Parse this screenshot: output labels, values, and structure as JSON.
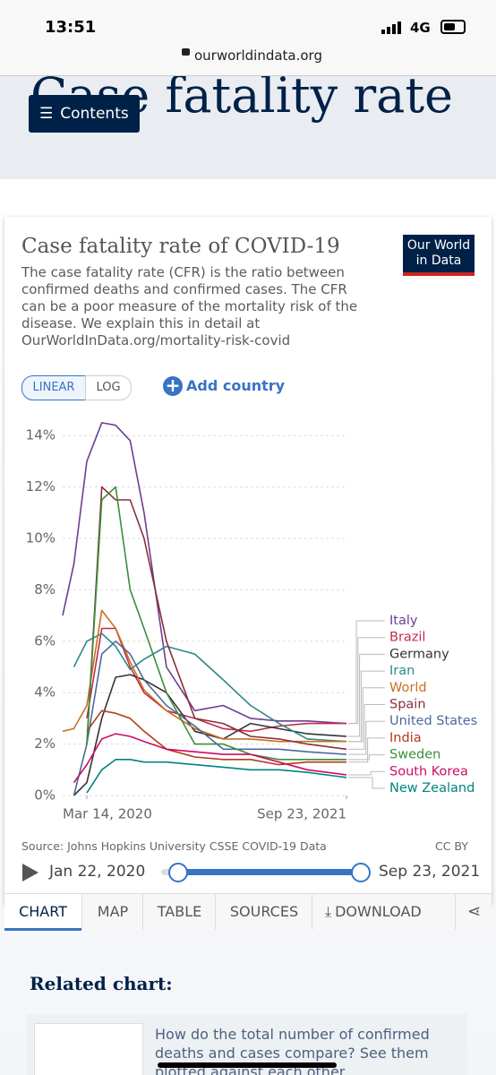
{
  "status_bar": {
    "time": "13:51",
    "network": "4G"
  },
  "browser": {
    "url": "ourworldindata.org"
  },
  "header": {
    "title": "Case fatality rate",
    "contents_button": "Contents"
  },
  "logo": {
    "line1": "Our World",
    "line2": "in Data"
  },
  "chart_data": {
    "type": "line",
    "title": "Case fatality rate of COVID-19",
    "subtitle": "The case fatality rate (CFR) is the ratio between confirmed deaths and confirmed cases. The CFR can be a poor measure of the mortality risk of the disease. We explain this in detail at OurWorldInData.org/mortality-risk-covid",
    "x": [
      "2020-01-22",
      "2020-02-15",
      "2020-03-14",
      "2020-04-15",
      "2020-05-15",
      "2020-06-15",
      "2020-07-15",
      "2020-09-01",
      "2020-11-01",
      "2021-01-01",
      "2021-03-01",
      "2021-05-01",
      "2021-07-01",
      "2021-09-23"
    ],
    "xlim": [
      "2020-01-22",
      "2021-09-23"
    ],
    "xticks": [
      {
        "value": "2020-03-14",
        "label": "Mar 14, 2020"
      },
      {
        "value": "2021-09-23",
        "label": "Sep 23, 2021"
      }
    ],
    "ylim": [
      0,
      14.5
    ],
    "yticks": [
      {
        "value": 0,
        "label": "0%"
      },
      {
        "value": 2,
        "label": "2%"
      },
      {
        "value": 4,
        "label": "4%"
      },
      {
        "value": 6,
        "label": "6%"
      },
      {
        "value": 8,
        "label": "8%"
      },
      {
        "value": 10,
        "label": "10%"
      },
      {
        "value": 12,
        "label": "12%"
      },
      {
        "value": 14,
        "label": "14%"
      }
    ],
    "grid": true,
    "legend": "right",
    "series": [
      {
        "name": "Italy",
        "color": "#6d3e91",
        "values": [
          7,
          9,
          13,
          14.5,
          14.4,
          13.8,
          11,
          5,
          3.3,
          3.5,
          3.0,
          2.9,
          2.9,
          2.8
        ]
      },
      {
        "name": "Brazil",
        "color": "#c32b4b",
        "values": [
          null,
          null,
          3,
          6.5,
          6.5,
          5,
          4,
          3.3,
          3.0,
          2.6,
          2.5,
          2.7,
          2.8,
          2.8
        ]
      },
      {
        "name": "Germany",
        "color": "#333333",
        "values": [
          null,
          0,
          0.5,
          3,
          4.6,
          4.7,
          4.5,
          4.0,
          2.5,
          2.2,
          2.8,
          2.6,
          2.4,
          2.3
        ]
      },
      {
        "name": "Iran",
        "color": "#2a8989",
        "values": [
          null,
          5,
          6,
          6.3,
          5.8,
          4.9,
          5.3,
          5.8,
          5.5,
          4.5,
          3.5,
          2.8,
          2.2,
          2.1
        ]
      },
      {
        "name": "World",
        "color": "#c96f1d",
        "values": [
          2.5,
          2.6,
          3.5,
          7.2,
          6.5,
          5.2,
          4.1,
          3.3,
          2.6,
          2.2,
          2.2,
          2.1,
          2.1,
          2.1
        ]
      },
      {
        "name": "Spain",
        "color": "#883039",
        "values": [
          null,
          null,
          2,
          12,
          11.5,
          11.5,
          10,
          6,
          3,
          2.8,
          2.3,
          2.2,
          2.0,
          1.8
        ]
      },
      {
        "name": "United States",
        "color": "#4c6a9c",
        "values": [
          null,
          0,
          2,
          5.5,
          6,
          5.5,
          4.5,
          3.5,
          2.7,
          1.8,
          1.8,
          1.8,
          1.7,
          1.6
        ]
      },
      {
        "name": "India",
        "color": "#b43a1a",
        "values": [
          null,
          null,
          2.5,
          3.3,
          3.2,
          3.0,
          2.5,
          1.8,
          1.5,
          1.4,
          1.4,
          1.2,
          1.3,
          1.3
        ]
      },
      {
        "name": "Sweden",
        "color": "#3b8e3b",
        "values": [
          null,
          null,
          2,
          11.5,
          12,
          8,
          6.5,
          4,
          2.0,
          2.0,
          1.6,
          1.4,
          1.4,
          1.4
        ]
      },
      {
        "name": "South Korea",
        "color": "#cf0a66",
        "values": [
          null,
          0.5,
          1.2,
          2.2,
          2.4,
          2.3,
          2.1,
          1.8,
          1.7,
          1.6,
          1.6,
          1.3,
          1.0,
          0.8
        ]
      },
      {
        "name": "New Zealand",
        "color": "#00847e",
        "values": [
          null,
          null,
          0.1,
          1.0,
          1.4,
          1.4,
          1.3,
          1.3,
          1.2,
          1.1,
          1.0,
          1.0,
          0.9,
          0.7
        ]
      }
    ]
  },
  "controls": {
    "linear": "LINEAR",
    "log": "LOG",
    "add_country": "Add country"
  },
  "footer": {
    "source": "Source: Johns Hopkins University CSSE COVID-19 Data",
    "license": "CC BY",
    "start": "Jan 22, 2020",
    "end": "Sep 23, 2021"
  },
  "tabs": [
    "CHART",
    "MAP",
    "TABLE",
    "SOURCES",
    "DOWNLOAD"
  ],
  "related": {
    "heading": "Related chart:",
    "text": "How do the total number of confirmed deaths and cases compare? See them plotted against each other"
  }
}
